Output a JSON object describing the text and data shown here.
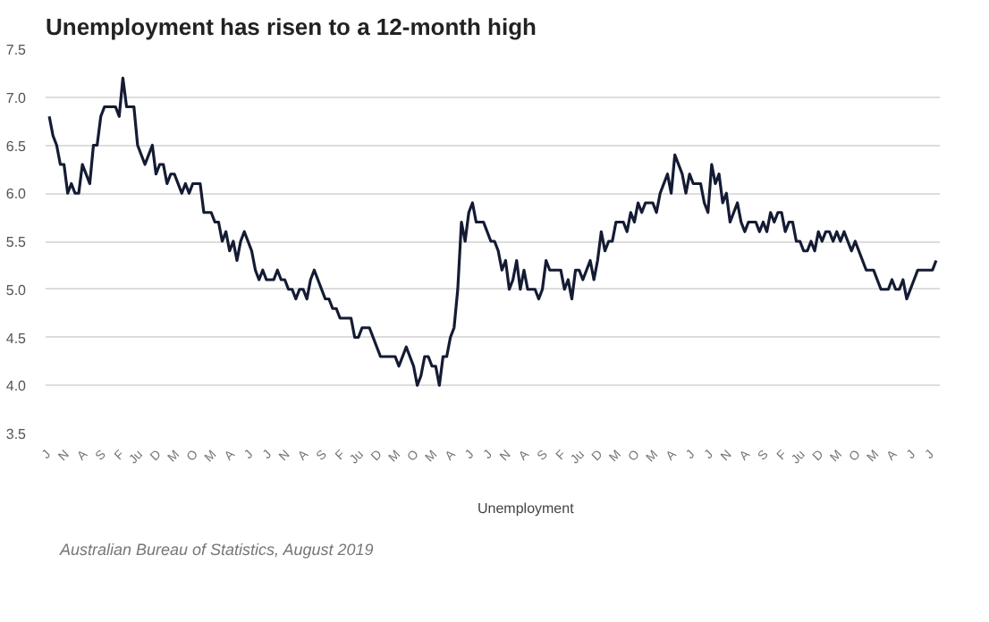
{
  "chart_data": {
    "type": "line",
    "title": "Unemployment has risen to a 12-month high",
    "annotations": [
      "Australian Bureau of Statistics, August 2019"
    ],
    "categories": [
      "J",
      null,
      null,
      null,
      null,
      "N",
      null,
      null,
      null,
      null,
      "A",
      null,
      null,
      null,
      null,
      "S",
      null,
      null,
      null,
      null,
      "F",
      null,
      null,
      null,
      null,
      "Ju",
      null,
      null,
      null,
      null,
      "D",
      null,
      null,
      null,
      null,
      "M",
      null,
      null,
      null,
      null,
      "O",
      null,
      null,
      null,
      null,
      "M",
      null,
      null,
      null,
      null,
      "A",
      null,
      null,
      null,
      null,
      "J",
      null,
      null,
      null,
      null,
      "J",
      null,
      null,
      null,
      null,
      "N",
      null,
      null,
      null,
      null,
      "A",
      null,
      null,
      null,
      null,
      "S",
      null,
      null,
      null,
      null,
      "F",
      null,
      null,
      null,
      null,
      "Ju",
      null,
      null,
      null,
      null,
      "D",
      null,
      null,
      null,
      null,
      "M",
      null,
      null,
      null,
      null,
      "O",
      null,
      null,
      null,
      null,
      "M",
      null,
      null,
      null,
      null,
      "A",
      null,
      null,
      null,
      null,
      "J",
      null,
      null,
      null,
      null,
      "J",
      null,
      null,
      null,
      null,
      "N",
      null,
      null,
      null,
      null,
      "A",
      null,
      null,
      null,
      null,
      "S",
      null,
      null,
      null,
      null,
      "F",
      null,
      null,
      null,
      null,
      "Ju",
      null,
      null,
      null,
      null,
      "D",
      null,
      null,
      null,
      null,
      "M",
      null,
      null,
      null,
      null,
      "O",
      null,
      null,
      null,
      null,
      "M",
      null,
      null,
      null,
      null,
      "A",
      null,
      null,
      null,
      null,
      "J",
      null,
      null,
      null,
      null,
      "J",
      null,
      null,
      null,
      null,
      "N",
      null,
      null,
      null,
      null,
      "A",
      null,
      null,
      null,
      null,
      "S",
      null,
      null,
      null,
      null,
      "F",
      null,
      null,
      null,
      null,
      "Ju",
      null,
      null,
      null,
      null,
      "D",
      null,
      null,
      null,
      null,
      "M",
      null,
      null,
      null,
      null,
      "O",
      null,
      null,
      null,
      null,
      "M",
      null,
      null,
      null,
      null,
      "A",
      null,
      null,
      null,
      null,
      "J",
      null,
      null,
      null,
      null,
      "J",
      null
    ],
    "series": [
      {
        "name": "Unemployment",
        "color": "#141b33",
        "values": [
          6.8,
          6.6,
          6.5,
          6.3,
          6.3,
          6.0,
          6.1,
          6.0,
          6.0,
          6.3,
          6.2,
          6.1,
          6.5,
          6.5,
          6.8,
          6.9,
          6.9,
          6.9,
          6.9,
          6.8,
          7.2,
          6.9,
          6.9,
          6.9,
          6.5,
          6.4,
          6.3,
          6.4,
          6.5,
          6.2,
          6.3,
          6.3,
          6.1,
          6.2,
          6.2,
          6.1,
          6.0,
          6.1,
          6.0,
          6.1,
          6.1,
          6.1,
          5.8,
          5.8,
          5.8,
          5.7,
          5.7,
          5.5,
          5.6,
          5.4,
          5.5,
          5.3,
          5.5,
          5.6,
          5.5,
          5.4,
          5.2,
          5.1,
          5.2,
          5.1,
          5.1,
          5.1,
          5.2,
          5.1,
          5.1,
          5.0,
          5.0,
          4.9,
          5.0,
          5.0,
          4.9,
          5.1,
          5.2,
          5.1,
          5.0,
          4.9,
          4.9,
          4.8,
          4.8,
          4.7,
          4.7,
          4.7,
          4.7,
          4.5,
          4.5,
          4.6,
          4.6,
          4.6,
          4.5,
          4.4,
          4.3,
          4.3,
          4.3,
          4.3,
          4.3,
          4.2,
          4.3,
          4.4,
          4.3,
          4.2,
          4.0,
          4.1,
          4.3,
          4.3,
          4.2,
          4.2,
          4.0,
          4.3,
          4.3,
          4.5,
          4.6,
          5.0,
          5.7,
          5.5,
          5.8,
          5.9,
          5.7,
          5.7,
          5.7,
          5.6,
          5.5,
          5.5,
          5.4,
          5.2,
          5.3,
          5.0,
          5.1,
          5.3,
          5.0,
          5.2,
          5.0,
          5.0,
          5.0,
          4.9,
          5.0,
          5.3,
          5.2,
          5.2,
          5.2,
          5.2,
          5.0,
          5.1,
          4.9,
          5.2,
          5.2,
          5.1,
          5.2,
          5.3,
          5.1,
          5.3,
          5.6,
          5.4,
          5.5,
          5.5,
          5.7,
          5.7,
          5.7,
          5.6,
          5.8,
          5.7,
          5.9,
          5.8,
          5.9,
          5.9,
          5.9,
          5.8,
          6.0,
          6.1,
          6.2,
          6.0,
          6.4,
          6.3,
          6.2,
          6.0,
          6.2,
          6.1,
          6.1,
          6.1,
          5.9,
          5.8,
          6.3,
          6.1,
          6.2,
          5.9,
          6.0,
          5.7,
          5.8,
          5.9,
          5.7,
          5.6,
          5.7,
          5.7,
          5.7,
          5.6,
          5.7,
          5.6,
          5.8,
          5.7,
          5.8,
          5.8,
          5.6,
          5.7,
          5.7,
          5.5,
          5.5,
          5.4,
          5.4,
          5.5,
          5.4,
          5.6,
          5.5,
          5.6,
          5.6,
          5.5,
          5.6,
          5.5,
          5.6,
          5.5,
          5.4,
          5.5,
          5.4,
          5.3,
          5.2,
          5.2,
          5.2,
          5.1,
          5.0,
          5.0,
          5.0,
          5.1,
          5.0,
          5.0,
          5.1,
          4.9,
          5.0,
          5.1,
          5.2,
          5.2,
          5.2,
          5.2,
          5.2,
          5.3
        ]
      }
    ],
    "ylim": [
      3.5,
      7.5
    ],
    "yticks": [
      3.5,
      {
        "value": 4,
        "label": "4.0"
      },
      4.5,
      {
        "value": 5,
        "label": "5.0"
      },
      5.5,
      {
        "value": 6,
        "label": "6.0"
      },
      6.5,
      {
        "value": 7,
        "label": "7.0"
      },
      7.5
    ],
    "grid": "y",
    "legend": "bottom",
    "marker": "none",
    "line_style": "solid"
  }
}
